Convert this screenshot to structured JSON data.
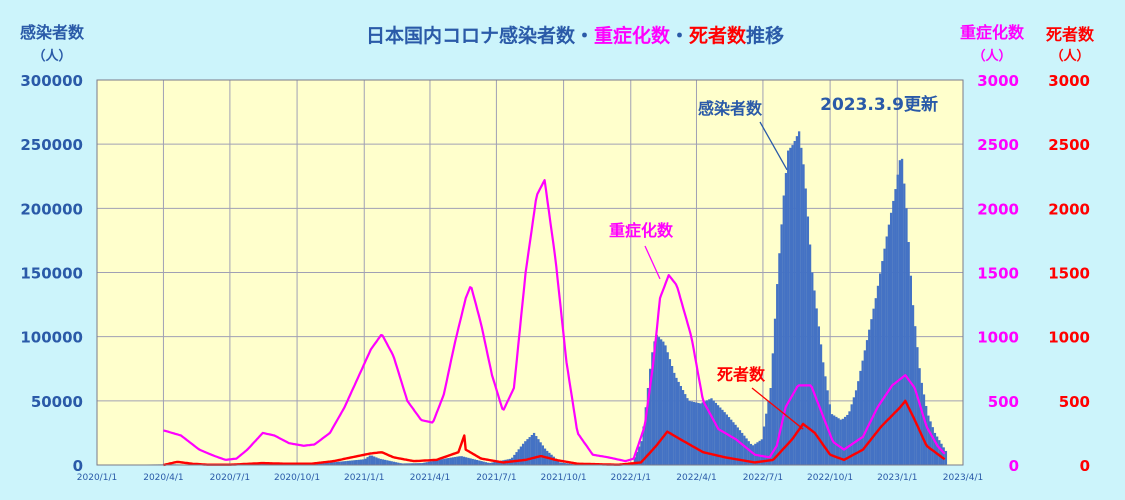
{
  "title": {
    "part1": "日本国内コロナ感染者数・",
    "part2": "重症化数",
    "part3": "・",
    "part4": "死者数",
    "part5": "推移"
  },
  "updated": "2023.3.9更新",
  "colors": {
    "background": "#ccf4fb",
    "plot_bg": "#ffffcc",
    "grid": "#a0a0b4",
    "infections": "#4472c4",
    "severe": "#ff00ff",
    "deaths": "#ff0000",
    "label_blue": "#2a5aa8"
  },
  "chart_data": {
    "type": "area",
    "x_ticks": [
      "2020/1/1",
      "2020/4/1",
      "2020/7/1",
      "2020/10/1",
      "2021/1/1",
      "2021/4/1",
      "2021/7/1",
      "2021/10/1",
      "2022/1/1",
      "2022/4/1",
      "2022/7/1",
      "2022/10/1",
      "2023/1/1",
      "2023/4/1"
    ],
    "axes": {
      "left": {
        "label_line1": "感染者数",
        "label_line2": "（人）",
        "ylim": [
          0,
          300000
        ],
        "ticks": [
          "0",
          "50000",
          "100000",
          "150000",
          "200000",
          "250000",
          "300000"
        ]
      },
      "right1": {
        "label_line1": "重症化数",
        "label_line2": "（人）",
        "ylim": [
          0,
          3000
        ],
        "ticks": [
          "0",
          "500",
          "1000",
          "1500",
          "2000",
          "2500",
          "3000"
        ]
      },
      "right2": {
        "label_line1": "死者数",
        "label_line2": "（人）",
        "ylim": [
          0,
          3000
        ],
        "ticks": [
          "0",
          "500",
          "1000",
          "1500",
          "2000",
          "2500",
          "3000"
        ]
      }
    },
    "grid": true,
    "series": [
      {
        "name": "感染者数",
        "axis": "left",
        "style": "bars",
        "points": [
          [
            "2020-01-01",
            0
          ],
          [
            "2020-04-10",
            600
          ],
          [
            "2020-05-20",
            100
          ],
          [
            "2020-07-01",
            300
          ],
          [
            "2020-08-07",
            1500
          ],
          [
            "2020-09-20",
            500
          ],
          [
            "2020-10-20",
            700
          ],
          [
            "2020-11-25",
            2500
          ],
          [
            "2020-12-31",
            4500
          ],
          [
            "2021-01-08",
            7800
          ],
          [
            "2021-01-20",
            5000
          ],
          [
            "2021-02-20",
            1200
          ],
          [
            "2021-03-20",
            1500
          ],
          [
            "2021-04-20",
            5000
          ],
          [
            "2021-05-12",
            7000
          ],
          [
            "2021-06-20",
            1500
          ],
          [
            "2021-07-20",
            5000
          ],
          [
            "2021-08-07",
            18000
          ],
          [
            "2021-08-20",
            25000
          ],
          [
            "2021-09-05",
            12000
          ],
          [
            "2021-09-25",
            2000
          ],
          [
            "2021-10-15",
            500
          ],
          [
            "2021-12-15",
            200
          ],
          [
            "2022-01-01",
            500
          ],
          [
            "2022-01-15",
            20000
          ],
          [
            "2022-01-28",
            85000
          ],
          [
            "2022-02-03",
            102000
          ],
          [
            "2022-02-15",
            95000
          ],
          [
            "2022-03-01",
            70000
          ],
          [
            "2022-03-20",
            50000
          ],
          [
            "2022-04-05",
            48000
          ],
          [
            "2022-04-20",
            52000
          ],
          [
            "2022-05-10",
            40000
          ],
          [
            "2022-05-25",
            30000
          ],
          [
            "2022-06-15",
            15000
          ],
          [
            "2022-06-28",
            20000
          ],
          [
            "2022-07-10",
            60000
          ],
          [
            "2022-07-20",
            150000
          ],
          [
            "2022-07-28",
            210000
          ],
          [
            "2022-08-03",
            245000
          ],
          [
            "2022-08-10",
            250000
          ],
          [
            "2022-08-18",
            260000
          ],
          [
            "2022-08-25",
            230000
          ],
          [
            "2022-09-05",
            150000
          ],
          [
            "2022-09-20",
            80000
          ],
          [
            "2022-10-01",
            40000
          ],
          [
            "2022-10-15",
            35000
          ],
          [
            "2022-10-25",
            40000
          ],
          [
            "2022-11-05",
            60000
          ],
          [
            "2022-11-20",
            100000
          ],
          [
            "2022-12-01",
            130000
          ],
          [
            "2022-12-15",
            175000
          ],
          [
            "2022-12-28",
            215000
          ],
          [
            "2023-01-05",
            245000
          ],
          [
            "2023-01-12",
            200000
          ],
          [
            "2023-01-20",
            130000
          ],
          [
            "2023-01-31",
            70000
          ],
          [
            "2023-02-10",
            40000
          ],
          [
            "2023-02-20",
            25000
          ],
          [
            "2023-03-08",
            10000
          ]
        ]
      },
      {
        "name": "重症化数",
        "axis": "right1",
        "style": "line",
        "points": [
          [
            "2020-04-01",
            270
          ],
          [
            "2020-04-25",
            230
          ],
          [
            "2020-05-20",
            120
          ],
          [
            "2020-06-10",
            70
          ],
          [
            "2020-06-25",
            40
          ],
          [
            "2020-07-10",
            50
          ],
          [
            "2020-07-25",
            120
          ],
          [
            "2020-08-15",
            250
          ],
          [
            "2020-08-31",
            230
          ],
          [
            "2020-09-20",
            170
          ],
          [
            "2020-10-10",
            150
          ],
          [
            "2020-10-25",
            160
          ],
          [
            "2020-11-15",
            250
          ],
          [
            "2020-12-05",
            450
          ],
          [
            "2020-12-25",
            700
          ],
          [
            "2021-01-10",
            900
          ],
          [
            "2021-01-25",
            1020
          ],
          [
            "2021-02-10",
            850
          ],
          [
            "2021-03-01",
            500
          ],
          [
            "2021-03-20",
            350
          ],
          [
            "2021-04-05",
            330
          ],
          [
            "2021-04-20",
            550
          ],
          [
            "2021-05-05",
            950
          ],
          [
            "2021-05-20",
            1300
          ],
          [
            "2021-05-27",
            1400
          ],
          [
            "2021-06-10",
            1100
          ],
          [
            "2021-06-25",
            700
          ],
          [
            "2021-07-10",
            420
          ],
          [
            "2021-07-25",
            600
          ],
          [
            "2021-08-10",
            1500
          ],
          [
            "2021-08-25",
            2100
          ],
          [
            "2021-09-05",
            2220
          ],
          [
            "2021-09-20",
            1600
          ],
          [
            "2021-10-05",
            800
          ],
          [
            "2021-10-20",
            250
          ],
          [
            "2021-11-10",
            80
          ],
          [
            "2021-12-01",
            60
          ],
          [
            "2021-12-25",
            30
          ],
          [
            "2022-01-05",
            50
          ],
          [
            "2022-01-20",
            300
          ],
          [
            "2022-02-01",
            800
          ],
          [
            "2022-02-10",
            1300
          ],
          [
            "2022-02-22",
            1480
          ],
          [
            "2022-03-05",
            1400
          ],
          [
            "2022-03-25",
            1000
          ],
          [
            "2022-04-10",
            500
          ],
          [
            "2022-05-01",
            280
          ],
          [
            "2022-05-25",
            200
          ],
          [
            "2022-06-20",
            80
          ],
          [
            "2022-07-10",
            60
          ],
          [
            "2022-07-20",
            150
          ],
          [
            "2022-08-01",
            450
          ],
          [
            "2022-08-18",
            620
          ],
          [
            "2022-09-05",
            620
          ],
          [
            "2022-09-20",
            400
          ],
          [
            "2022-10-05",
            180
          ],
          [
            "2022-10-20",
            120
          ],
          [
            "2022-11-15",
            220
          ],
          [
            "2022-12-05",
            450
          ],
          [
            "2022-12-25",
            620
          ],
          [
            "2023-01-12",
            700
          ],
          [
            "2023-01-25",
            600
          ],
          [
            "2023-02-10",
            300
          ],
          [
            "2023-02-25",
            150
          ],
          [
            "2023-03-08",
            80
          ]
        ]
      },
      {
        "name": "死者数",
        "axis": "right2",
        "style": "line",
        "points": [
          [
            "2020-04-01",
            0
          ],
          [
            "2020-04-20",
            25
          ],
          [
            "2020-05-10",
            10
          ],
          [
            "2020-06-01",
            2
          ],
          [
            "2020-07-01",
            2
          ],
          [
            "2020-08-15",
            15
          ],
          [
            "2020-09-15",
            10
          ],
          [
            "2020-10-20",
            10
          ],
          [
            "2020-11-20",
            30
          ],
          [
            "2020-12-15",
            60
          ],
          [
            "2021-01-10",
            90
          ],
          [
            "2021-01-25",
            100
          ],
          [
            "2021-02-10",
            60
          ],
          [
            "2021-03-10",
            30
          ],
          [
            "2021-04-10",
            40
          ],
          [
            "2021-05-10",
            100
          ],
          [
            "2021-05-18",
            230
          ],
          [
            "2021-05-20",
            120
          ],
          [
            "2021-06-10",
            50
          ],
          [
            "2021-07-10",
            20
          ],
          [
            "2021-08-10",
            40
          ],
          [
            "2021-08-31",
            70
          ],
          [
            "2021-09-20",
            40
          ],
          [
            "2021-10-20",
            10
          ],
          [
            "2021-12-15",
            2
          ],
          [
            "2022-01-15",
            20
          ],
          [
            "2022-02-05",
            150
          ],
          [
            "2022-02-20",
            260
          ],
          [
            "2022-03-10",
            200
          ],
          [
            "2022-04-10",
            100
          ],
          [
            "2022-05-10",
            60
          ],
          [
            "2022-06-20",
            20
          ],
          [
            "2022-07-15",
            40
          ],
          [
            "2022-08-10",
            200
          ],
          [
            "2022-08-25",
            320
          ],
          [
            "2022-09-10",
            250
          ],
          [
            "2022-10-01",
            80
          ],
          [
            "2022-10-20",
            40
          ],
          [
            "2022-11-15",
            120
          ],
          [
            "2022-12-10",
            300
          ],
          [
            "2023-01-05",
            450
          ],
          [
            "2023-01-12",
            500
          ],
          [
            "2023-01-25",
            350
          ],
          [
            "2023-02-10",
            150
          ],
          [
            "2023-03-08",
            40
          ]
        ]
      }
    ],
    "annotations": [
      {
        "text": "感染者数",
        "color": "#2a5aa8",
        "points_to": [
          "2022-08-03",
          230000
        ],
        "axis": "left"
      },
      {
        "text": "重症化数",
        "color": "#ff00ff",
        "points_to": [
          "2022-02-10",
          1450
        ],
        "axis": "right1"
      },
      {
        "text": "死者数",
        "color": "#ff0000",
        "points_to": [
          "2022-08-25",
          280
        ],
        "axis": "right2"
      }
    ]
  }
}
